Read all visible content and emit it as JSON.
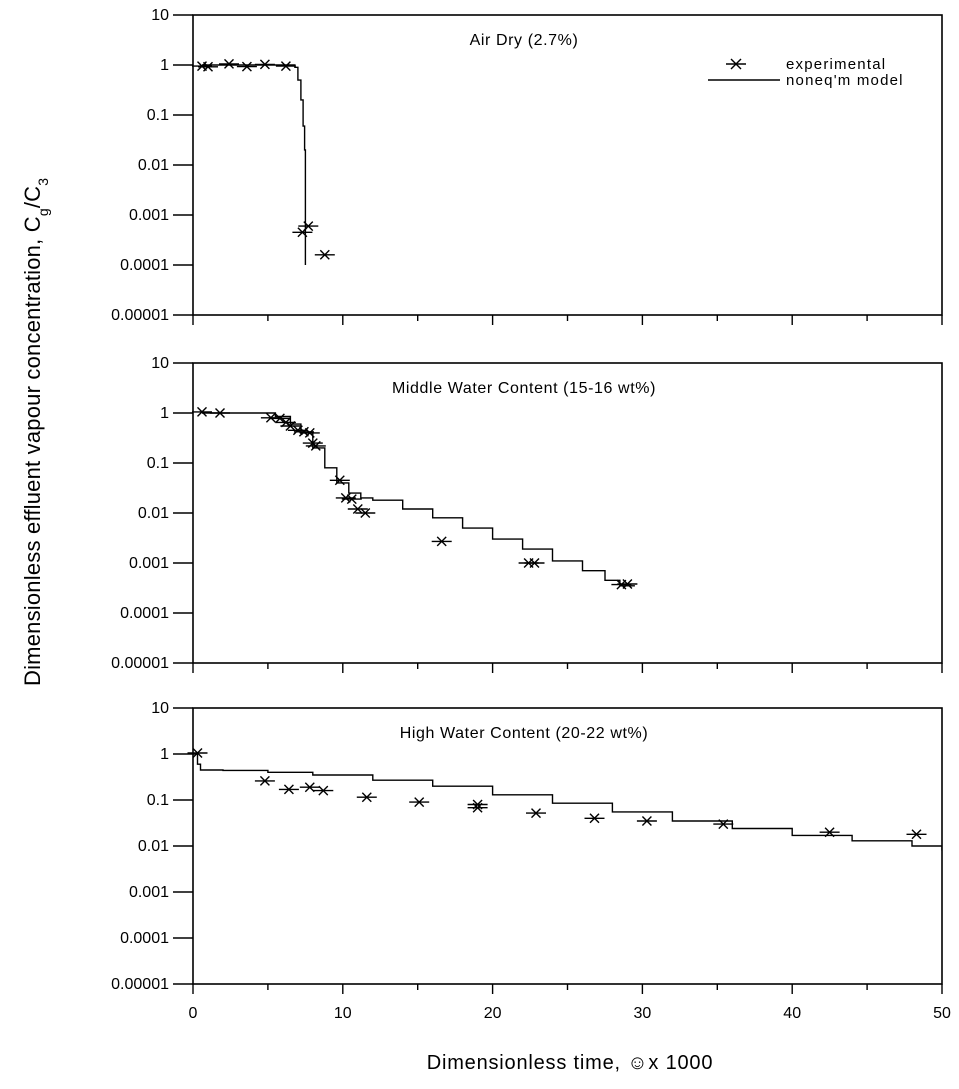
{
  "chart_data": [
    {
      "type": "scatter",
      "title": "Air Dry (2.7%)",
      "y_scale": "log",
      "ylim": [
        1e-05,
        10
      ],
      "xlim": [
        0,
        50
      ],
      "y_ticks": [
        "10",
        "1",
        "0.1",
        "0.01",
        "0.001",
        "0.0001",
        "0.00001"
      ],
      "legend": {
        "placement": "top-right",
        "entries": [
          {
            "label": "experimental",
            "marker": "asterisk"
          },
          {
            "label": "noneq'm model",
            "marker": "line"
          }
        ]
      },
      "series": [
        {
          "name": "experimental",
          "kind": "points",
          "x": [
            0.6,
            1.0,
            2.4,
            3.6,
            4.8,
            6.2,
            7.3,
            7.7,
            8.8
          ],
          "y": [
            0.95,
            0.92,
            1.05,
            0.93,
            1.03,
            0.95,
            0.00045,
            0.0006,
            0.00016
          ]
        },
        {
          "name": "noneq'm model",
          "kind": "line",
          "x": [
            0.6,
            6.5,
            6.8,
            7.0,
            7.2,
            7.35,
            7.45,
            7.5,
            7.5
          ],
          "y": [
            1,
            1,
            0.9,
            0.5,
            0.2,
            0.06,
            0.02,
            0.005,
            0.0001
          ]
        }
      ]
    },
    {
      "type": "scatter",
      "title": "Middle Water Content (15-16 wt%)",
      "y_scale": "log",
      "ylim": [
        1e-05,
        10
      ],
      "xlim": [
        0,
        50
      ],
      "y_ticks": [
        "10",
        "1",
        "0.1",
        "0.01",
        "0.001",
        "0.0001",
        "0.00001"
      ],
      "series": [
        {
          "name": "experimental",
          "kind": "points",
          "x": [
            0.6,
            1.8,
            5.2,
            5.8,
            6.2,
            6.5,
            7.0,
            7.4,
            7.8,
            8.0,
            8.2,
            9.8,
            10.2,
            10.6,
            11.0,
            11.5,
            16.6,
            22.4,
            22.8,
            28.6,
            29.0
          ],
          "y": [
            1.05,
            1.0,
            0.8,
            0.78,
            0.65,
            0.55,
            0.45,
            0.42,
            0.4,
            0.25,
            0.22,
            0.045,
            0.02,
            0.019,
            0.012,
            0.01,
            0.0027,
            0.001,
            0.001,
            0.00037,
            0.00038
          ]
        },
        {
          "name": "noneq'm model",
          "kind": "line",
          "x": [
            0.6,
            4.5,
            5.5,
            6.5,
            7.2,
            8.0,
            8.8,
            9.6,
            10.4,
            11.2,
            12.0,
            14.0,
            16.0,
            18.0,
            20.0,
            22.0,
            24.0,
            26.0,
            27.5,
            28.5,
            29.5
          ],
          "y": [
            1,
            1,
            0.85,
            0.6,
            0.4,
            0.2,
            0.08,
            0.04,
            0.025,
            0.02,
            0.018,
            0.012,
            0.008,
            0.005,
            0.003,
            0.0019,
            0.0011,
            0.0007,
            0.00045,
            0.00035,
            0.00035
          ]
        }
      ]
    },
    {
      "type": "scatter",
      "title": "High Water Content (20-22 wt%)",
      "y_scale": "log",
      "ylim": [
        1e-05,
        10
      ],
      "xlim": [
        0,
        50
      ],
      "y_ticks": [
        "10",
        "1",
        "0.1",
        "0.01",
        "0.001",
        "0.0001",
        "0.00001"
      ],
      "x_ticks": [
        "0",
        "10",
        "20",
        "30",
        "40",
        "50"
      ],
      "series": [
        {
          "name": "experimental",
          "kind": "points",
          "x": [
            0.3,
            4.8,
            6.4,
            7.8,
            8.7,
            11.6,
            15.1,
            19.0,
            19.0,
            22.9,
            26.8,
            30.3,
            35.4,
            42.5,
            48.3
          ],
          "y": [
            1.05,
            0.26,
            0.17,
            0.19,
            0.16,
            0.115,
            0.09,
            0.08,
            0.068,
            0.052,
            0.04,
            0.035,
            0.03,
            0.02,
            0.018
          ]
        },
        {
          "name": "noneq'm model",
          "kind": "line",
          "x": [
            0,
            0.3,
            0.5,
            2,
            5,
            8,
            12,
            16,
            20,
            24,
            28,
            32,
            36,
            40,
            44,
            48,
            50
          ],
          "y": [
            1,
            0.6,
            0.45,
            0.44,
            0.4,
            0.35,
            0.27,
            0.2,
            0.13,
            0.085,
            0.055,
            0.035,
            0.024,
            0.017,
            0.013,
            0.01,
            0.008
          ]
        }
      ]
    }
  ],
  "axes": {
    "x_title": "Dimensionless time, ☺x 1000",
    "y_title": "Dimensionless effluent vapour concentration, C",
    "y_title_sub": "g",
    "y_title_div": "/C",
    "y_title_sub2": "3"
  }
}
